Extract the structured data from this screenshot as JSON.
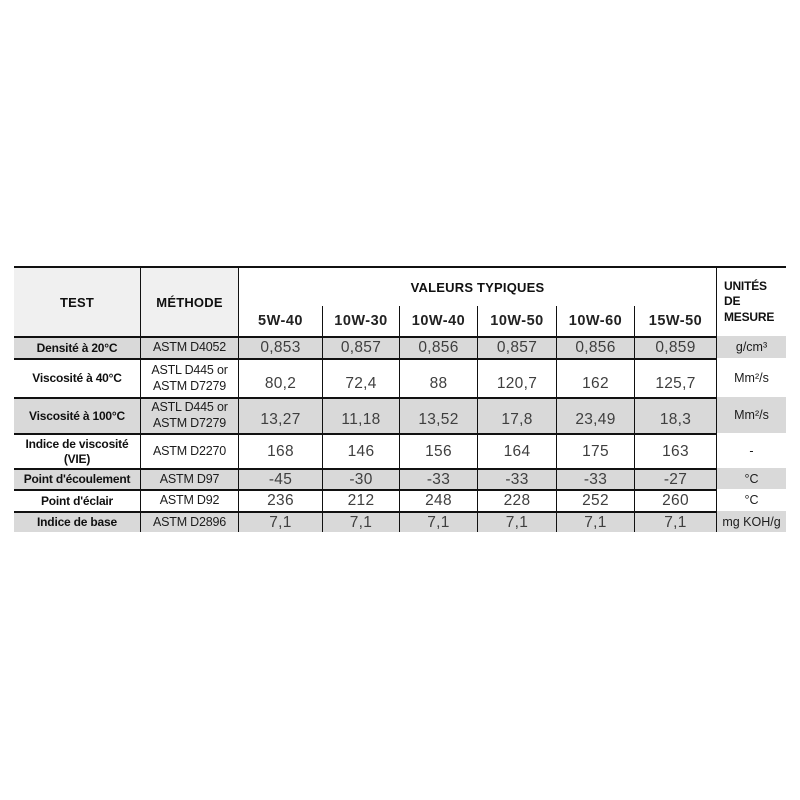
{
  "colors": {
    "background": "#ffffff",
    "header_shade": "#f0f0f0",
    "row_shade": "#d9d9d9",
    "border": "#111111",
    "label_text": "#101010",
    "value_text": "#3f3f3f"
  },
  "chart_data": {
    "type": "table",
    "header": {
      "test": "TEST",
      "method": "MÉTHODE",
      "group": "VALEURS TYPIQUES",
      "units": "UNITÉS DE MESURE",
      "grades": [
        "5W-40",
        "10W-30",
        "10W-40",
        "10W-50",
        "10W-60",
        "15W-50"
      ]
    },
    "rows": [
      {
        "test": "Densité à 20°C",
        "method": "ASTM D4052",
        "values": [
          "0,853",
          "0,857",
          "0,856",
          "0,857",
          "0,856",
          "0,859"
        ],
        "unit": "g/cm³"
      },
      {
        "test": "Viscosité à 40°C",
        "method": "ASTL D445 or\nASTM D7279",
        "values": [
          "80,2",
          "72,4",
          "88",
          "120,7",
          "162",
          "125,7"
        ],
        "unit": "Mm²/s"
      },
      {
        "test": "Viscosité à 100°C",
        "method": "ASTL D445 or\nASTM D7279",
        "values": [
          "13,27",
          "11,18",
          "13,52",
          "17,8",
          "23,49",
          "18,3"
        ],
        "unit": "Mm²/s"
      },
      {
        "test": "Indice de viscosité\n(VIE)",
        "method": "ASTM D2270",
        "values": [
          "168",
          "146",
          "156",
          "164",
          "175",
          "163"
        ],
        "unit": "-"
      },
      {
        "test": "Point d'écoulement",
        "method": "ASTM D97",
        "values": [
          "-45",
          "-30",
          "-33",
          "-33",
          "-33",
          "-27"
        ],
        "unit": "°C"
      },
      {
        "test": "Point d'éclair",
        "method": "ASTM D92",
        "values": [
          "236",
          "212",
          "248",
          "228",
          "252",
          "260"
        ],
        "unit": "°C"
      },
      {
        "test": "Indice de base",
        "method": "ASTM D2896",
        "values": [
          "7,1",
          "7,1",
          "7,1",
          "7,1",
          "7,1",
          "7,1"
        ],
        "unit": "mg KOH/g"
      }
    ]
  }
}
